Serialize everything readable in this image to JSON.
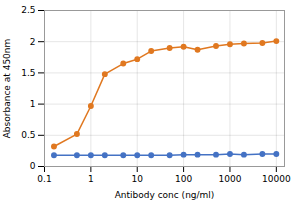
{
  "chart_data": {
    "type": "line",
    "x": [
      0.16,
      0.5,
      1.0,
      2.0,
      5.0,
      10.0,
      20.0,
      50.0,
      100.0,
      200.0,
      500.0,
      1000.0,
      2000.0,
      5000.0,
      10000.0
    ],
    "series": [
      {
        "color": "#E07820",
        "values": [
          0.32,
          0.52,
          0.97,
          1.48,
          1.65,
          1.72,
          1.85,
          1.9,
          1.92,
          1.87,
          1.93,
          1.96,
          1.97,
          1.98,
          2.01
        ]
      },
      {
        "color": "#4472C4",
        "values": [
          0.18,
          0.18,
          0.18,
          0.18,
          0.18,
          0.18,
          0.18,
          0.18,
          0.19,
          0.19,
          0.19,
          0.2,
          0.19,
          0.2,
          0.2
        ]
      }
    ],
    "xlabel": "Antibody conc (ng/ml)",
    "ylabel": "Absorbance at 450nm",
    "xlim": [
      0.1,
      15000
    ],
    "ylim": [
      0,
      2.5
    ],
    "xticks": [
      0.1,
      1,
      10,
      100,
      1000,
      10000
    ],
    "yticks": [
      0,
      0.5,
      1.0,
      1.5,
      2.0,
      2.5
    ],
    "log": "x",
    "grid": true,
    "marker": "circle"
  }
}
